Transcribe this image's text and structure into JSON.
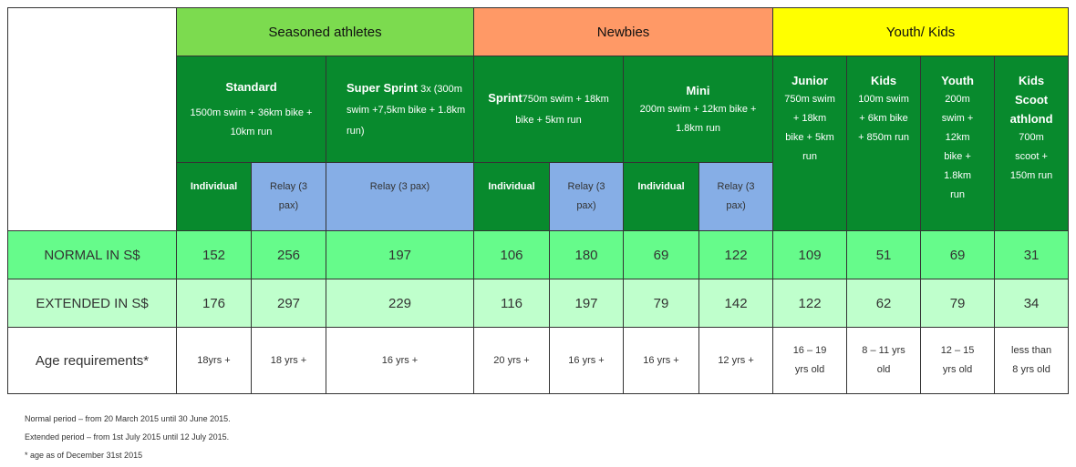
{
  "categories": {
    "seasoned": "Seasoned athletes",
    "newbies": "Newbies",
    "youth": "Youth/ Kids"
  },
  "events": {
    "standard": {
      "name": "Standard",
      "desc": "1500m swim + 36km bike + 10km run"
    },
    "super_sprint": {
      "name": "Super Sprint",
      "desc": " 3x (300m swim +7,5km bike + 1.8km run)"
    },
    "sprint": {
      "name": "Sprint",
      "desc": "750m swim + 18km bike + 5km run"
    },
    "mini": {
      "name": "Mini",
      "desc": "200m swim + 12km bike + 1.8km run"
    },
    "junior": {
      "name": "Junior",
      "desc": "750m swim + 18km bike + 5km run"
    },
    "kids": {
      "name": "Kids",
      "desc": "100m swim + 6km bike + 850m run"
    },
    "youth": {
      "name": "Youth",
      "desc": "200m swim + 12km bike + 1.8km run"
    },
    "kids_scoot": {
      "name": "Kids Scoot athlond",
      "desc": "700m scoot + 150m run"
    }
  },
  "subheaders": {
    "individual": "Individual",
    "relay": "Relay (3 pax)"
  },
  "rows": {
    "normal": {
      "label": "NORMAL IN S$",
      "values": [
        "152",
        "256",
        "197",
        "106",
        "180",
        "69",
        "122",
        "109",
        "51",
        "69",
        "31"
      ]
    },
    "extended": {
      "label": "EXTENDED IN S$",
      "values": [
        "176",
        "297",
        "229",
        "116",
        "197",
        "79",
        "142",
        "122",
        "62",
        "79",
        "34"
      ]
    },
    "age": {
      "label": "Age requirements*",
      "values": [
        "18yrs +",
        "18 yrs +",
        "16 yrs +",
        "20 yrs +",
        "16 yrs +",
        "16 yrs +",
        "12 yrs  +",
        "16 – 19 yrs old",
        "8 – 11 yrs old",
        "12 – 15 yrs old",
        "less than 8 yrs old"
      ]
    }
  },
  "notes": [
    "Normal period – from 20 March 2015 until 30 June 2015.",
    "Extended period – from 1st July 2015 until 12 July 2015.",
    "* age as of December 31st 2015"
  ],
  "colors": {
    "seasoned": "#7cdb4f",
    "newbies": "#ff9966",
    "youth": "#ffff00",
    "dark_green": "#088a2d",
    "blue": "#86aee6",
    "normal_row": "#66fb8b",
    "extended_row": "#bfffcc"
  }
}
